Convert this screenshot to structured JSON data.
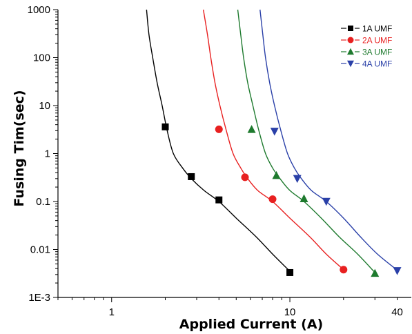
{
  "chart_data": {
    "type": "scatter",
    "title": "",
    "xlabel": "Applied Current (A)",
    "ylabel": "Fusing Tim(sec)",
    "x_scale": "log",
    "y_scale": "log",
    "xlim": [
      0.5,
      48
    ],
    "ylim": [
      0.001,
      1000
    ],
    "x_ticks": [
      {
        "value": 1,
        "label": "1"
      },
      {
        "value": 10,
        "label": "10"
      },
      {
        "value": 40,
        "label": "40"
      }
    ],
    "y_ticks": [
      {
        "value": 1000,
        "label": "1000"
      },
      {
        "value": 100,
        "label": "100"
      },
      {
        "value": 10,
        "label": "10"
      },
      {
        "value": 1,
        "label": "1"
      },
      {
        "value": 0.1,
        "label": "0.1"
      },
      {
        "value": 0.01,
        "label": "0.01"
      },
      {
        "value": 0.001,
        "label": "1E-3"
      }
    ],
    "grid": false,
    "legend_position": "top-right",
    "series": [
      {
        "name": "1A UMF",
        "color": "#000000",
        "marker": "square",
        "points": [
          [
            2,
            3.6
          ],
          [
            2.8,
            0.33
          ],
          [
            4,
            0.108
          ],
          [
            10,
            0.0033
          ]
        ],
        "curve": [
          [
            1.57,
            1000
          ],
          [
            1.62,
            300
          ],
          [
            1.7,
            100
          ],
          [
            1.8,
            30
          ],
          [
            1.92,
            10
          ],
          [
            2.05,
            3
          ],
          [
            2.22,
            1
          ],
          [
            2.5,
            0.5
          ],
          [
            2.8,
            0.3
          ],
          [
            3.3,
            0.17
          ],
          [
            4,
            0.1
          ],
          [
            5,
            0.045
          ],
          [
            6.5,
            0.018
          ],
          [
            8,
            0.008
          ],
          [
            10,
            0.0035
          ]
        ]
      },
      {
        "name": "2A UMF",
        "color": "#e82020",
        "marker": "circle",
        "points": [
          [
            4,
            3.2
          ],
          [
            5.6,
            0.32
          ],
          [
            8,
            0.112
          ],
          [
            20,
            0.0038
          ]
        ],
        "curve": [
          [
            3.27,
            1000
          ],
          [
            3.45,
            300
          ],
          [
            3.6,
            100
          ],
          [
            3.8,
            30
          ],
          [
            4.05,
            10
          ],
          [
            4.4,
            3
          ],
          [
            4.8,
            1
          ],
          [
            5.3,
            0.5
          ],
          [
            5.8,
            0.3
          ],
          [
            6.6,
            0.17
          ],
          [
            8,
            0.1
          ],
          [
            10,
            0.045
          ],
          [
            13,
            0.018
          ],
          [
            16,
            0.008
          ],
          [
            20,
            0.0038
          ]
        ]
      },
      {
        "name": "3A UMF",
        "color": "#1e7a2e",
        "marker": "triangle-up",
        "points": [
          [
            6.1,
            3.2
          ],
          [
            8.4,
            0.35
          ],
          [
            12,
            0.115
          ],
          [
            30,
            0.0032
          ]
        ],
        "curve": [
          [
            5.1,
            1000
          ],
          [
            5.3,
            300
          ],
          [
            5.5,
            100
          ],
          [
            5.8,
            30
          ],
          [
            6.2,
            10
          ],
          [
            6.7,
            3
          ],
          [
            7.3,
            1
          ],
          [
            8,
            0.5
          ],
          [
            8.8,
            0.3
          ],
          [
            10,
            0.17
          ],
          [
            12,
            0.1
          ],
          [
            15,
            0.045
          ],
          [
            19,
            0.018
          ],
          [
            24,
            0.008
          ],
          [
            30,
            0.0033
          ]
        ]
      },
      {
        "name": "4A UMF",
        "color": "#2a40a8",
        "marker": "triangle-down",
        "points": [
          [
            8.2,
            2.9
          ],
          [
            11,
            0.3
          ],
          [
            16,
            0.1
          ],
          [
            40,
            0.0036
          ]
        ],
        "curve": [
          [
            6.8,
            1000
          ],
          [
            7.05,
            300
          ],
          [
            7.3,
            100
          ],
          [
            7.7,
            30
          ],
          [
            8.2,
            10
          ],
          [
            8.9,
            3
          ],
          [
            9.7,
            1
          ],
          [
            10.6,
            0.5
          ],
          [
            11.6,
            0.3
          ],
          [
            13.2,
            0.17
          ],
          [
            16,
            0.1
          ],
          [
            20,
            0.045
          ],
          [
            25,
            0.018
          ],
          [
            31,
            0.008
          ],
          [
            40,
            0.0037
          ]
        ]
      }
    ]
  }
}
